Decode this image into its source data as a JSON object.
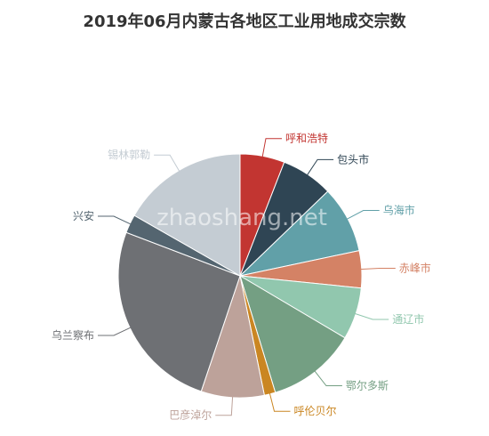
{
  "watermark": "zhaoshang.net",
  "chart_data": {
    "type": "pie",
    "title": "2019年06月内蒙古各地区工业用地成交宗数",
    "slices": [
      {
        "name": "呼和浩特",
        "value": 6,
        "color": "#c23531"
      },
      {
        "name": "包头市",
        "value": 7,
        "color": "#2f4554"
      },
      {
        "name": "乌海市",
        "value": 9,
        "color": "#61a0a8"
      },
      {
        "name": "赤峰市",
        "value": 5,
        "color": "#d48265"
      },
      {
        "name": "通辽市",
        "value": 7,
        "color": "#91c7ae"
      },
      {
        "name": "鄂尔多斯",
        "value": 12,
        "color": "#749f83"
      },
      {
        "name": "呼伦贝尔",
        "value": 1.5,
        "color": "#ca8622"
      },
      {
        "name": "巴彦淖尔",
        "value": 8.5,
        "color": "#bda29a"
      },
      {
        "name": "乌兰察布",
        "value": 26,
        "color": "#6e7074"
      },
      {
        "name": "兴安",
        "value": 2.5,
        "color": "#546570"
      },
      {
        "name": "锡林郭勒",
        "value": 17,
        "color": "#c4ccd3"
      }
    ]
  }
}
